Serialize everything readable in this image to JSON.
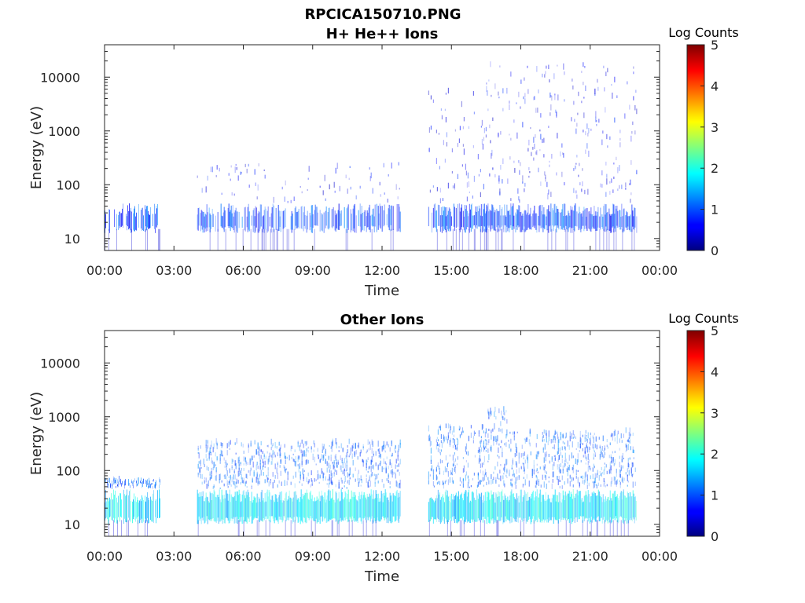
{
  "figure": {
    "title": "RPCICA150710.PNG"
  },
  "chart_data": [
    {
      "type": "heatmap",
      "title": "H+ He++ Ions",
      "xlabel": "Time",
      "ylabel": "Energy (eV)",
      "x_ticks": [
        "00:00",
        "03:00",
        "06:00",
        "09:00",
        "12:00",
        "15:00",
        "18:00",
        "21:00",
        "00:00"
      ],
      "xlim_hours": [
        0,
        24
      ],
      "y_scale": "log",
      "ylim": [
        6,
        40000
      ],
      "y_ticks": [
        {
          "value": 10,
          "label": "10"
        },
        {
          "value": 100,
          "label": "100"
        },
        {
          "value": 1000,
          "label": "1000"
        },
        {
          "value": 10000,
          "label": "10000"
        }
      ],
      "colorbar": {
        "title": "Log Counts",
        "range": [
          0,
          5
        ],
        "ticks": [
          "0",
          "1",
          "2",
          "3",
          "4",
          "5"
        ],
        "colormap": "jet"
      },
      "data_intervals_hours": [
        [
          0.0,
          2.4,
          2.2,
          0.15
        ],
        [
          4.0,
          12.8,
          2.2,
          0.35
        ],
        [
          14.0,
          16.5,
          3.5,
          0.7
        ],
        [
          16.5,
          23.0,
          4.0,
          0.9
        ]
      ],
      "low_band_energy_ev": [
        15,
        45
      ],
      "typical_log_counts": 0.5
    },
    {
      "type": "heatmap",
      "title": "Other Ions",
      "xlabel": "Time",
      "ylabel": "Energy (eV)",
      "x_ticks": [
        "00:00",
        "03:00",
        "06:00",
        "09:00",
        "12:00",
        "15:00",
        "18:00",
        "21:00",
        "00:00"
      ],
      "xlim_hours": [
        0,
        24
      ],
      "y_scale": "log",
      "ylim": [
        6,
        40000
      ],
      "y_ticks": [
        {
          "value": 10,
          "label": "10"
        },
        {
          "value": 100,
          "label": "100"
        },
        {
          "value": 1000,
          "label": "1000"
        },
        {
          "value": 10000,
          "label": "10000"
        }
      ],
      "colorbar": {
        "title": "Log Counts",
        "range": [
          0,
          5
        ],
        "ticks": [
          "0",
          "1",
          "2",
          "3",
          "4",
          "5"
        ],
        "colormap": "jet"
      },
      "data_intervals_hours": [
        [
          0.0,
          2.4,
          1.6,
          0.8
        ],
        [
          4.0,
          12.8,
          2.3,
          1.6
        ],
        [
          14.0,
          16.5,
          2.6,
          1.9
        ],
        [
          16.5,
          17.6,
          2.9,
          2.0
        ],
        [
          17.6,
          23.0,
          2.5,
          1.9
        ]
      ],
      "low_band_energy_ev": [
        12,
        45
      ],
      "typical_log_counts": 1.3
    }
  ]
}
